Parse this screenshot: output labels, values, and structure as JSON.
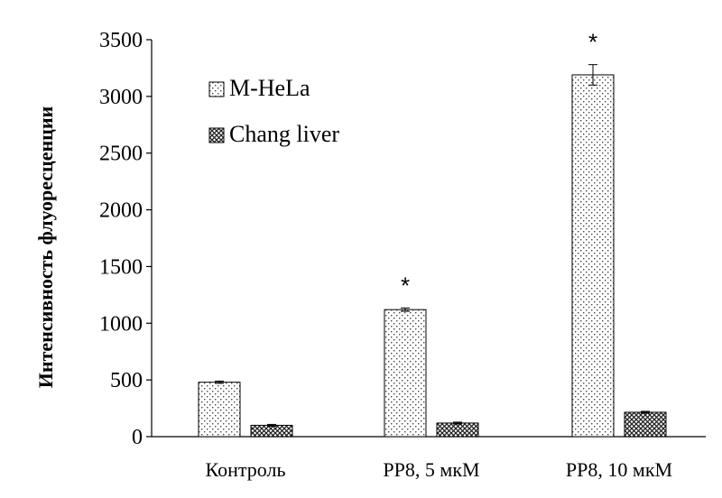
{
  "chart_data": {
    "type": "bar",
    "title": "",
    "xlabel": "",
    "ylabel": "Интенсивность флуоресценции",
    "ylim": [
      0,
      3500
    ],
    "yticks": [
      0,
      500,
      1000,
      1500,
      2000,
      2500,
      3000,
      3500
    ],
    "grid": false,
    "legend_position": "top-left",
    "categories": [
      "Контроль",
      "PP8, 5 мкМ",
      "PP8, 10 мкМ"
    ],
    "series": [
      {
        "name": "M-HeLa",
        "values": [
          480,
          1120,
          3190
        ],
        "errors": [
          10,
          15,
          90
        ],
        "pattern": "dots"
      },
      {
        "name": "Chang liver",
        "values": [
          100,
          120,
          215
        ],
        "errors": [
          8,
          8,
          8
        ],
        "pattern": "crosshatch"
      }
    ],
    "significance": [
      "",
      "*",
      "*"
    ],
    "significance_series": "M-HeLa"
  }
}
